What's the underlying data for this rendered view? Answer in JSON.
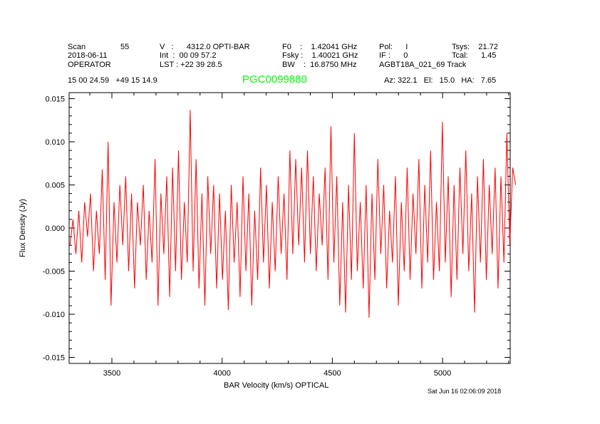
{
  "header": {
    "scan_label": "Scan",
    "scan": "55",
    "date": "2018-06-11",
    "observer": "OPERATOR",
    "v": "V   :      4312.0 OPTI-BAR",
    "int": "Int  :  00 09 57.2",
    "lst": "LST : +22 39 28.5",
    "f0": "F0    :    1.42041 GHz",
    "fsky": "Fsky :    1.40021 GHz",
    "bw": "BW    :  16.8750 MHz",
    "pol": "Pol:      I",
    "if": "IF :      0",
    "project": "AGBT18A_021_69 Track",
    "tsys": "Tsys:    21.72",
    "tcal": "Tcal:      1.45",
    "coords": "15 00 24.59   +49 15 14.9",
    "source": "PGC0099880",
    "azelha": "Az: 322.1   El:   15.0   HA:   7.65"
  },
  "footer": {
    "timestamp": "Sat Jun 16 02:06:09 2018"
  },
  "colors": {
    "line": "#ff0000",
    "source": "#00ff00"
  },
  "chart_data": {
    "type": "line",
    "xlabel": "BAR Velocity (km/s) OPTICAL",
    "ylabel": "Flux Density (Jy)",
    "xlim": [
      3306,
      5307
    ],
    "ylim": [
      -0.0157,
      0.0157
    ],
    "xticks": [
      3500,
      4000,
      4500,
      5000
    ],
    "xtick_labels": [
      "3500",
      "4000",
      "4500",
      "5000"
    ],
    "yticks": [
      -0.015,
      -0.01,
      -0.005,
      0,
      0.005,
      0.01,
      0.015
    ],
    "ytick_labels": [
      "-0.015",
      "-0.010",
      "-0.005",
      "0.000",
      "0.005",
      "0.010",
      "0.015"
    ],
    "x_start": 3310,
    "x_step": 13.3,
    "y": [
      -0.002,
      0.001,
      -0.003,
      0.002,
      -0.004,
      0.003,
      -0.001,
      0.004,
      -0.005,
      0.002,
      -0.003,
      0.0068,
      -0.006,
      0.01,
      -0.009,
      0.003,
      -0.004,
      0.005,
      -0.002,
      0.006,
      -0.005,
      0.004,
      -0.007,
      0.003,
      -0.002,
      0.005,
      -0.006,
      0.002,
      -0.004,
      0.008,
      -0.009,
      0.004,
      -0.003,
      0.006,
      -0.008,
      0.007,
      -0.005,
      0.009,
      -0.006,
      0.003,
      -0.004,
      0.0137,
      -0.005,
      0.008,
      -0.007,
      0.004,
      -0.009,
      0.006,
      -0.003,
      0.005,
      -0.007,
      0.004,
      -0.006,
      0.002,
      -0.0095,
      0.005,
      -0.004,
      0.003,
      -0.008,
      0.006,
      -0.005,
      0.004,
      -0.009,
      0.002,
      -0.006,
      0.007,
      -0.004,
      0.005,
      -0.007,
      0.003,
      -0.005,
      0.006,
      -0.003,
      0.004,
      -0.006,
      0.009,
      -0.003,
      0.008,
      -0.002,
      0.007,
      -0.004,
      0.009,
      -0.003,
      0.006,
      -0.005,
      0.004,
      -0.002,
      0.007,
      -0.006,
      0.0118,
      -0.004,
      0.006,
      -0.009,
      0.003,
      -0.0098,
      0.005,
      -0.006,
      0.011,
      -0.005,
      0.003,
      -0.007,
      0.005,
      -0.0104,
      0.004,
      -0.006,
      0.008,
      -0.003,
      0.005,
      -0.007,
      0.002,
      -0.004,
      0.006,
      -0.009,
      0.003,
      -0.005,
      0.007,
      -0.006,
      0.004,
      -0.003,
      0.008,
      -0.007,
      0.005,
      -0.004,
      0.009,
      -0.006,
      0.003,
      -0.005,
      0.0123,
      -0.004,
      0.006,
      -0.008,
      0.005,
      -0.006,
      0.007,
      -0.003,
      0.009,
      -0.005,
      0.004,
      -0.0098,
      0.006,
      -0.004,
      0.008,
      -0.006,
      0.005,
      -0.003,
      0.007,
      -0.007,
      0.006,
      -0.004,
      0.011,
      -0.002,
      0.007,
      0.005
    ]
  }
}
